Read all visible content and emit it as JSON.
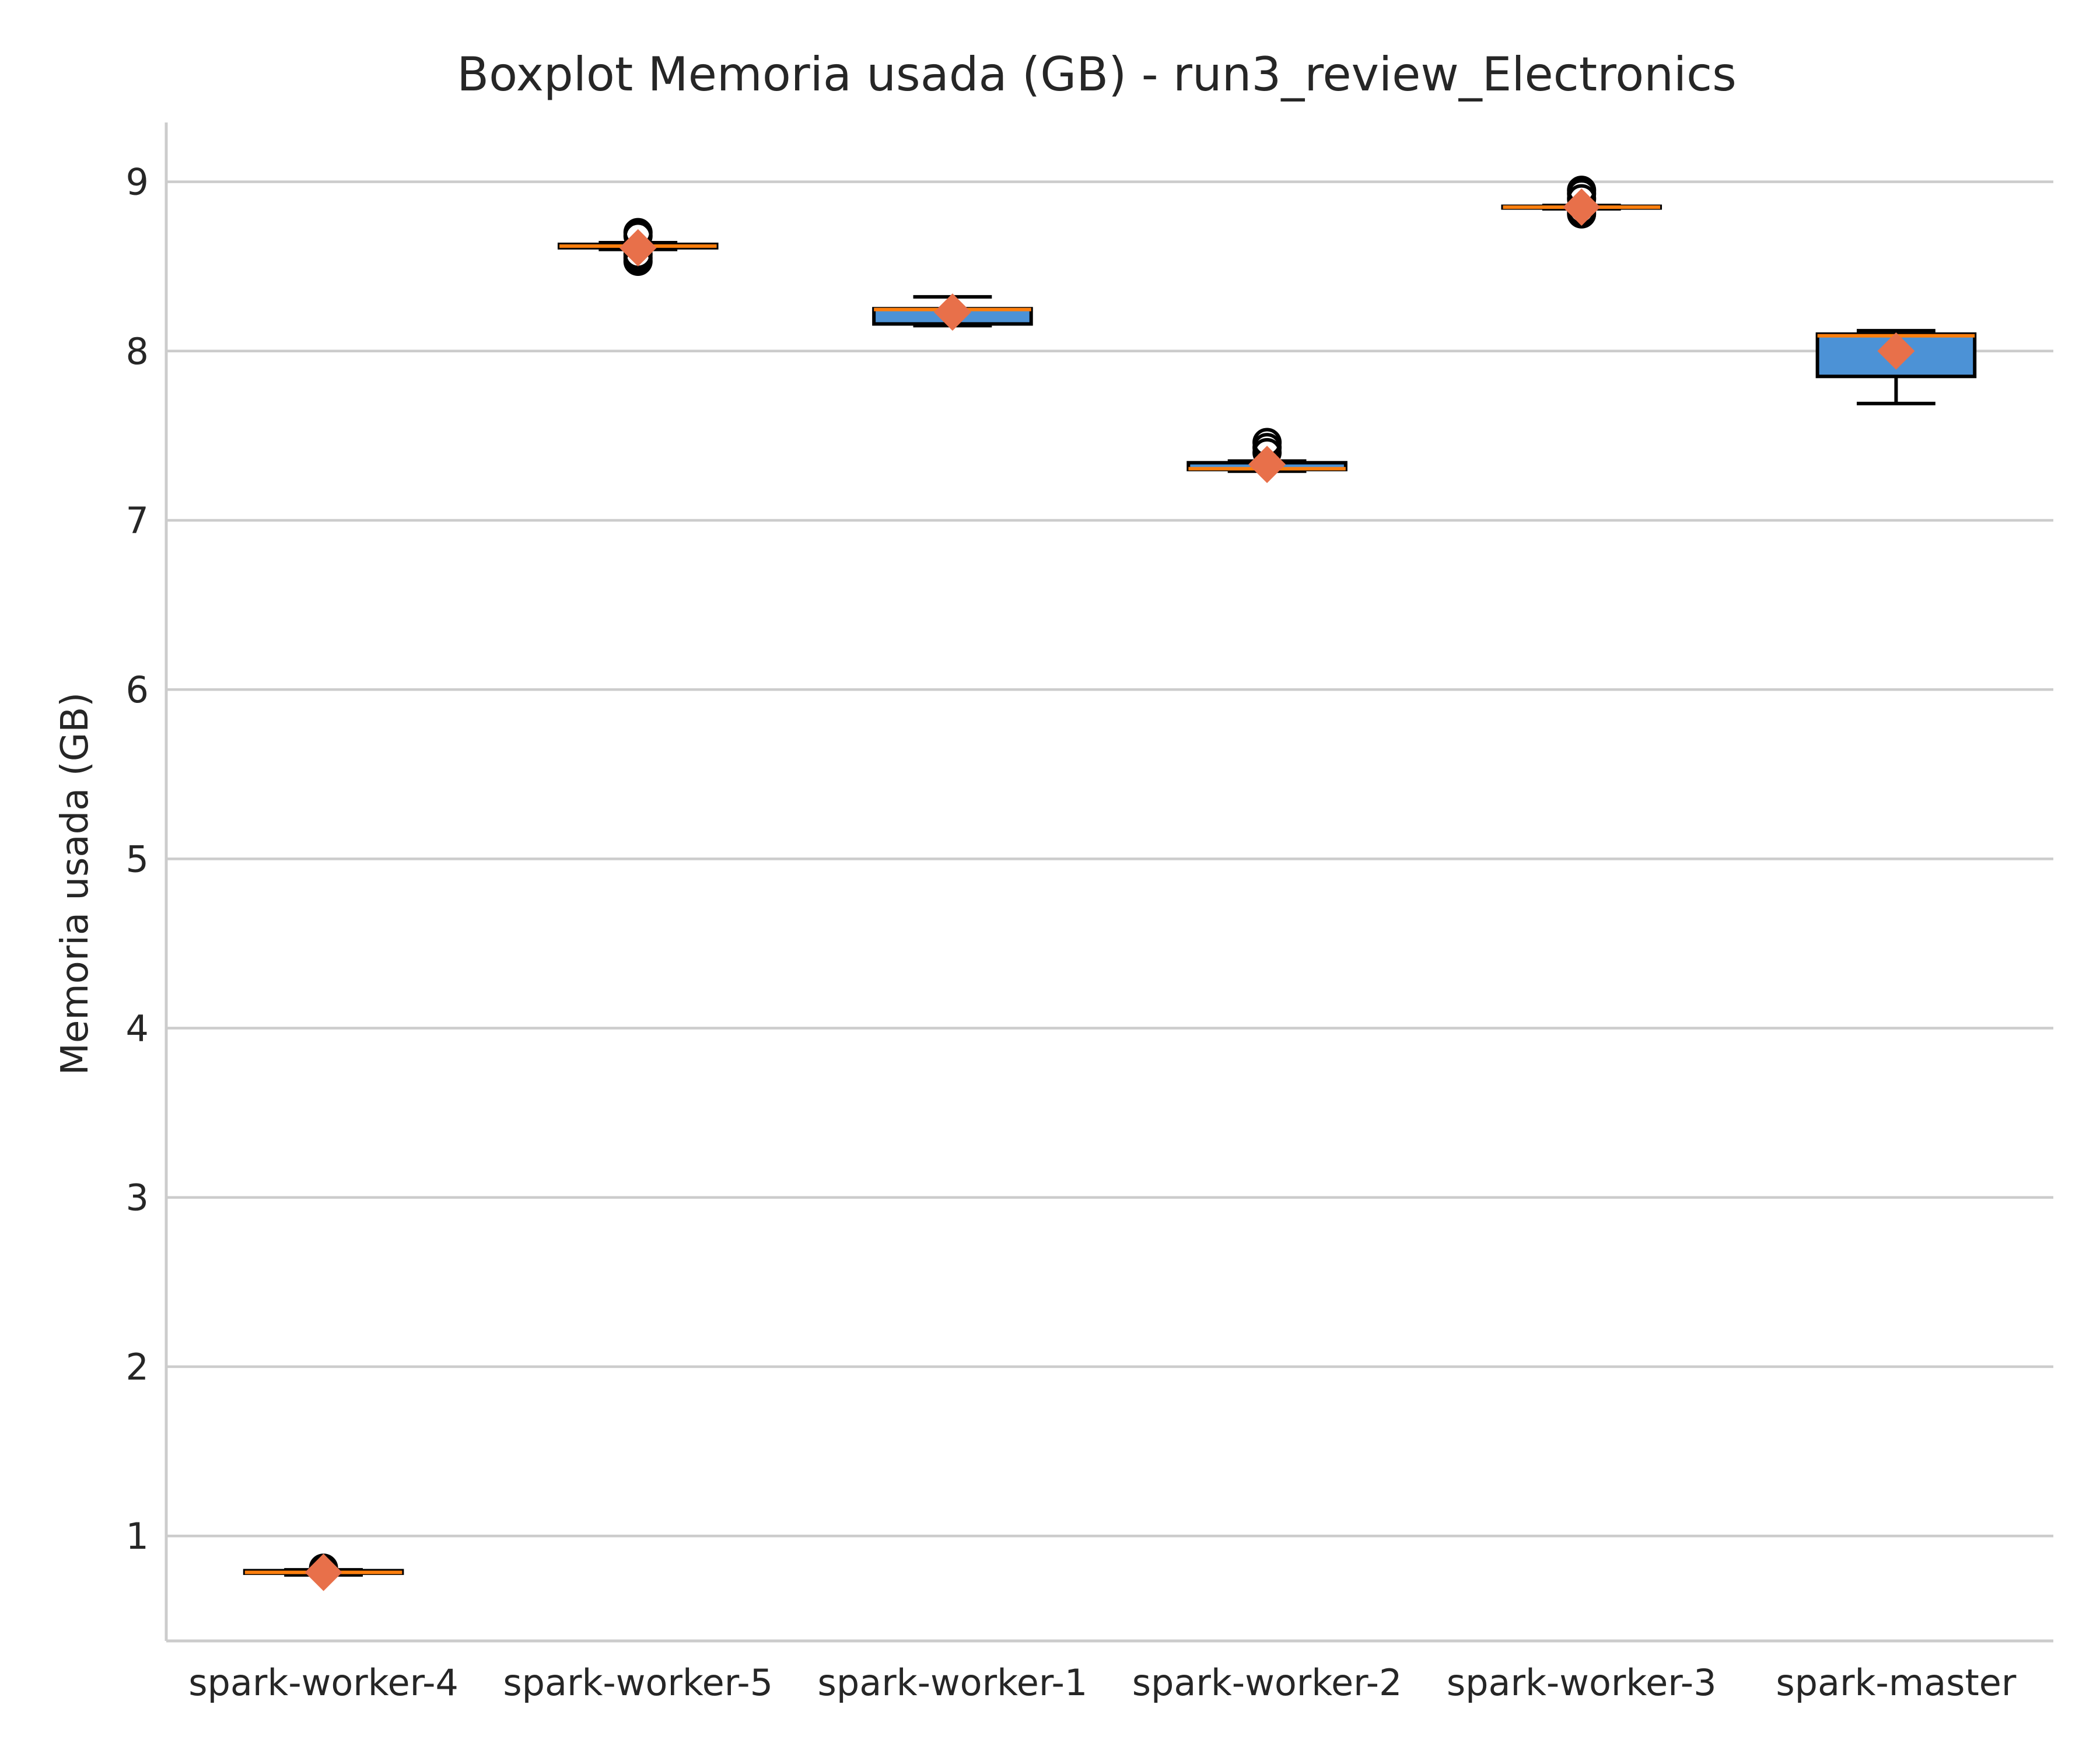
{
  "chart_data": {
    "type": "boxplot",
    "title": "Boxplot Memoria usada (GB) - run3_review_Electronics",
    "xlabel": "",
    "ylabel": "Memoria usada (GB)",
    "ylim": [
      0.38,
      9.35
    ],
    "yticks": [
      1,
      2,
      3,
      4,
      5,
      6,
      7,
      8,
      9
    ],
    "grid": "y",
    "categories": [
      "spark-worker-4",
      "spark-worker-5",
      "spark-worker-1",
      "spark-worker-2",
      "spark-worker-3",
      "spark-master"
    ],
    "boxes": [
      {
        "name": "spark-worker-4",
        "whislo": 0.77,
        "q1": 0.78,
        "med": 0.785,
        "q3": 0.795,
        "whishi": 0.8,
        "mean": 0.785,
        "fliers": [
          0.8,
          0.81
        ]
      },
      {
        "name": "spark-worker-5",
        "whislo": 8.6,
        "q1": 8.61,
        "med": 8.62,
        "q3": 8.63,
        "whishi": 8.64,
        "mean": 8.61,
        "fliers": [
          8.53,
          8.55,
          8.57,
          8.68,
          8.7
        ]
      },
      {
        "name": "spark-worker-1",
        "whislo": 8.15,
        "q1": 8.16,
        "med": 8.245,
        "q3": 8.25,
        "whishi": 8.32,
        "mean": 8.23,
        "fliers": []
      },
      {
        "name": "spark-worker-2",
        "whislo": 7.29,
        "q1": 7.3,
        "med": 7.305,
        "q3": 7.34,
        "whishi": 7.35,
        "mean": 7.33,
        "fliers": [
          7.4,
          7.43,
          7.46
        ]
      },
      {
        "name": "spark-worker-3",
        "whislo": 8.84,
        "q1": 8.845,
        "med": 8.85,
        "q3": 8.855,
        "whishi": 8.86,
        "mean": 8.85,
        "fliers": [
          8.81,
          8.83,
          8.9,
          8.93,
          8.95
        ]
      },
      {
        "name": "spark-master",
        "whislo": 7.69,
        "q1": 7.85,
        "med": 8.09,
        "q3": 8.1,
        "whishi": 8.12,
        "mean": 8.0,
        "fliers": []
      }
    ],
    "colors": {
      "box": "#4c92d6",
      "median": "#ff7f0e",
      "mean": "#e8704a",
      "grid": "#cccccc"
    }
  }
}
